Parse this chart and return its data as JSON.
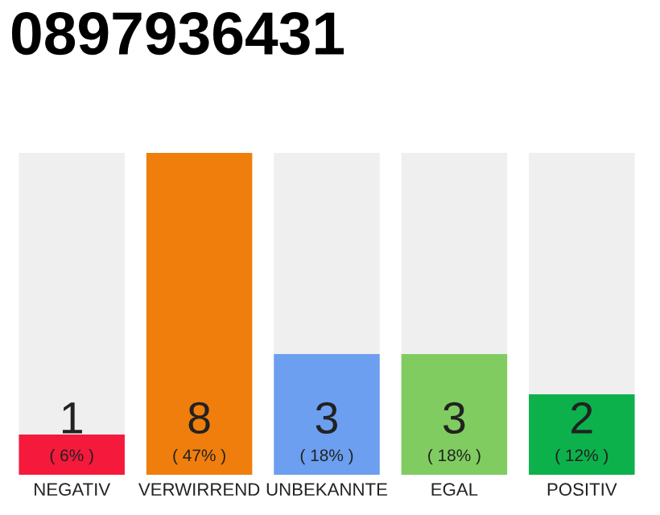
{
  "chart_data": {
    "type": "bar",
    "title": "0897936431",
    "categories": [
      "NEGATIV",
      "VERWIRREND",
      "UNBEKANNTE",
      "EGAL",
      "POSITIV"
    ],
    "values": [
      1,
      8,
      3,
      3,
      2
    ],
    "colors": [
      "#f5193c",
      "#f07e0c",
      "#6c9ff0",
      "#80cc60",
      "#0cb14c"
    ],
    "ylim": [
      0,
      8
    ],
    "data_labels": true,
    "grid": false,
    "legend": false,
    "tick_labels": "x",
    "annotations": [
      "( 6% )",
      "( 47% )",
      "( 18% )",
      "( 18% )",
      "( 12% )"
    ]
  }
}
